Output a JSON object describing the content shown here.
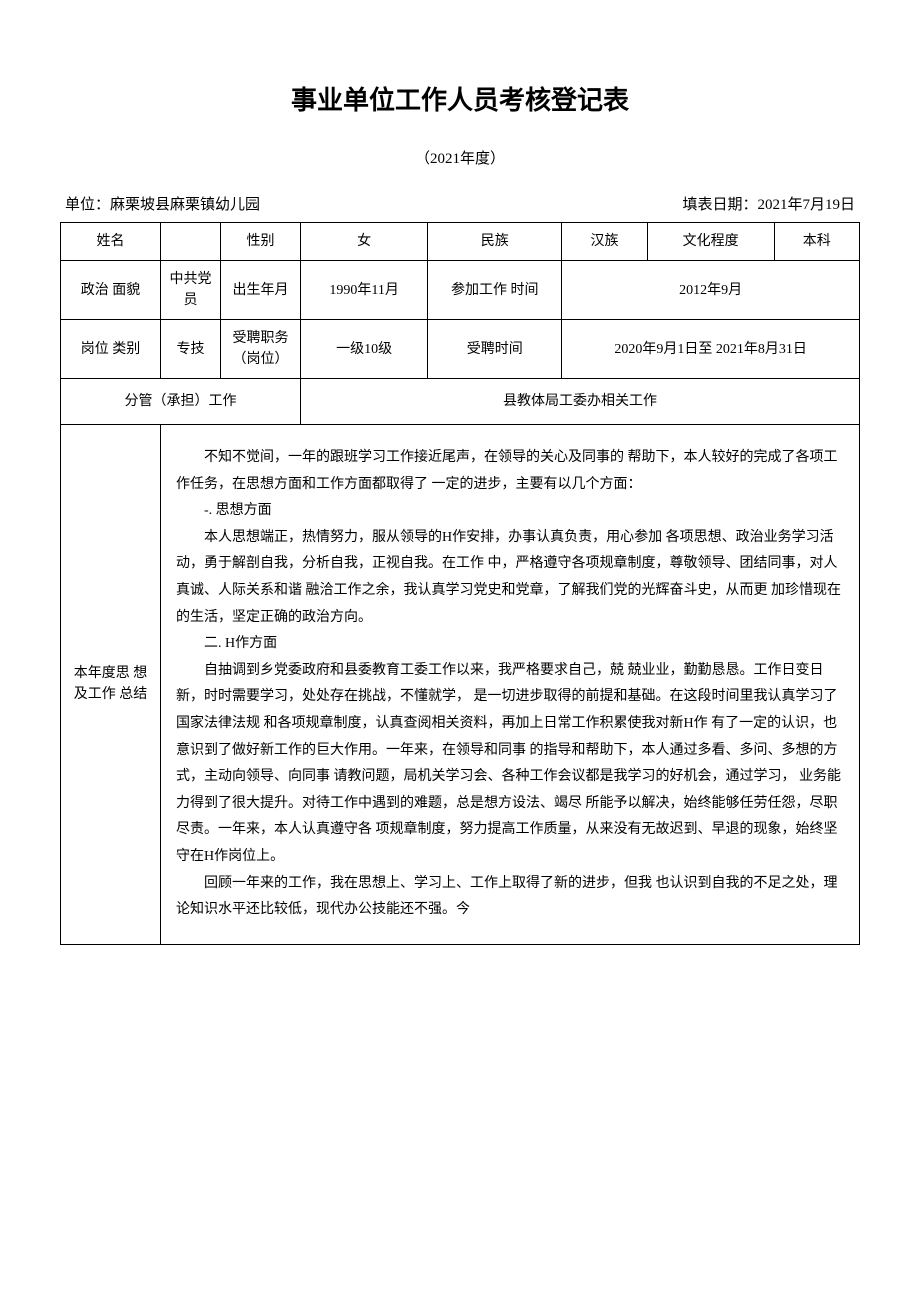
{
  "document": {
    "title": "事业单位工作人员考核登记表",
    "year": "（2021年度）",
    "unit_label": "单位：",
    "unit": "麻栗坡县麻栗镇幼儿园",
    "date_label": "填表日期：",
    "date": "2021年7月19日"
  },
  "fields": {
    "name_label": "姓名",
    "name": "",
    "gender_label": "性别",
    "gender": "女",
    "ethnicity_label": "民族",
    "ethnicity": "汉族",
    "education_label": "文化程度",
    "education": "本科",
    "political_label": "政治 面貌",
    "political": "中共党员",
    "birth_label": "出生年月",
    "birth": "1990年11月",
    "work_start_label": "参加工作 时间",
    "work_start": "2012年9月",
    "post_type_label": "岗位 类别",
    "post_type": "专技",
    "post_hired_label": "受聘职务（岗位）",
    "post_hired": "一级10级",
    "hire_time_label": "受聘时间",
    "hire_time": "2020年9月1日至 2021年8月31日",
    "work_charge_label": "分管（承担）工作",
    "work_charge": "县教体局工委办相关工作"
  },
  "summary": {
    "label": "本年度思 想及工作 总结",
    "p1": "不知不觉间，一年的跟班学习工作接近尾声，在领导的关心及同事的 帮助下，本人较好的完成了各项工作任务，在思想方面和工作方面都取得了  一定的进步，主要有以几个方面：",
    "s1": "-. 思想方面",
    "p2": "本人思想端正，热情努力，服从领导的H作安排，办事认真负责，用心参加   各项思想、政治业务学习活动，勇于解剖自我，分析自我，正视自我。在工作 中，严格遵守各项规章制度，尊敬领导、团结同事，对人真诚、人际关系和谐 融洽工作之余，我认真学习党史和党章，了解我们党的光辉奋斗史，从而更 加珍惜现在的生活，坚定正确的政治方向。",
    "s2": "二. H作方面",
    "p3": "自抽调到乡党委政府和县委教育工委工作以来，我严格要求自己，兢 兢业业，勤勤恳恳。工作日变日新，时时需要学习，处处存在挑战，不懂就学， 是一切进步取得的前提和基础。在这段时间里我认真学习了国家法律法规 和各项规章制度，认真查阅相关资料，再加上日常工作积累使我对新H作 有了一定的认识，也意识到了做好新工作的巨大作用。一年来，在领导和同事 的指导和帮助下，本人通过多看、多问、多想的方式，主动向领导、向同事 请教问题，局机关学习会、各种工作会议都是我学习的好机会，通过学习，  业务能力得到了很大提升。对待工作中遇到的难题，总是想方设法、竭尽 所能予以解决，始终能够任劳任怨，尽职尽责。一年来，本人认真遵守各 项规章制度，努力提高工作质量，从来没有无故迟到、早退的现象，始终坚 守在H作岗位上。",
    "p4": "回顾一年来的工作，我在思想上、学习上、工作上取得了新的进步，但我 也认识到自我的不足之处，理论知识水平还比较低，现代办公技能还不强。今"
  },
  "style": {
    "border_color": "#000000",
    "background_color": "#ffffff",
    "text_color": "#000000",
    "title_fontsize": 26,
    "body_fontsize": 14,
    "subtitle_fontsize": 15,
    "line_height": 1.9
  }
}
